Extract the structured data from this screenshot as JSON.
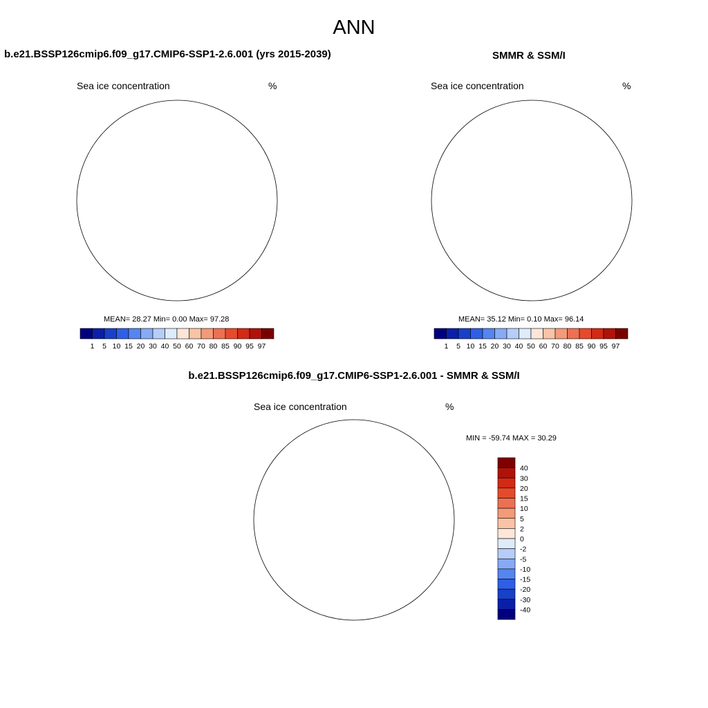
{
  "figure": {
    "season": "ANN"
  },
  "panels": [
    {
      "id": "model",
      "title": "b.e21.BSSP126cmip6.f09_g17.CMIP6-SSP1-2.6.001 (yrs 2015-2039)",
      "variable": "Sea ice concentration",
      "units": "%",
      "stats": {
        "mean_label": "MEAN=",
        "mean": "28.27",
        "min_label": "Min=",
        "min": "0.00",
        "max_label": "Max=",
        "max": "97.28"
      }
    },
    {
      "id": "obs",
      "title": "SMMR & SSM/I",
      "variable": "Sea ice concentration",
      "units": "%",
      "stats": {
        "mean_label": "MEAN=",
        "mean": "35.12",
        "min_label": "Min=",
        "min": "0.10",
        "max_label": "Max=",
        "max": "96.14"
      }
    },
    {
      "id": "diff",
      "title": "b.e21.BSSP126cmip6.f09_g17.CMIP6-SSP1-2.6.001 - SMMR & SSM/I",
      "variable": "Sea ice concentration",
      "units": "%",
      "stats_text": "MIN = -59.74 MAX =  30.29"
    }
  ],
  "colorbar_concentration": {
    "ticks": [
      "1",
      "5",
      "10",
      "15",
      "20",
      "30",
      "40",
      "50",
      "60",
      "70",
      "80",
      "85",
      "90",
      "95",
      "97"
    ],
    "colors": [
      "#00007f",
      "#0a1fa8",
      "#1840c8",
      "#2e5fe6",
      "#5585f0",
      "#86aaf4",
      "#b5cdf8",
      "#deebfb",
      "#fde6d8",
      "#f9c3a6",
      "#f39a79",
      "#ee7052",
      "#e64a2c",
      "#d22a15",
      "#b0120a",
      "#7a0000"
    ]
  },
  "colorbar_difference": {
    "ticks": [
      "40",
      "30",
      "20",
      "15",
      "10",
      "5",
      "2",
      "0",
      "-2",
      "-5",
      "-10",
      "-15",
      "-20",
      "-30",
      "-40"
    ],
    "colors": [
      "#7f0000",
      "#b0120a",
      "#d22a15",
      "#e64a2c",
      "#ee7052",
      "#f39a79",
      "#f9c3a6",
      "#fde6d8",
      "#deebfb",
      "#b5cdf8",
      "#86aaf4",
      "#5585f0",
      "#2e5fe6",
      "#1840c8",
      "#0a1fa8",
      "#00007f"
    ]
  },
  "colors": {
    "ice_dark_blue": "#00007f",
    "ice_blue": "#1840c8",
    "ice_light_blue": "#86aaf4",
    "ice_pale": "#deebfb",
    "ice_peach": "#f9c3a6",
    "ice_salmon": "#f39a79",
    "ice_red": "#e64a2c",
    "ice_darkred": "#b0120a"
  }
}
